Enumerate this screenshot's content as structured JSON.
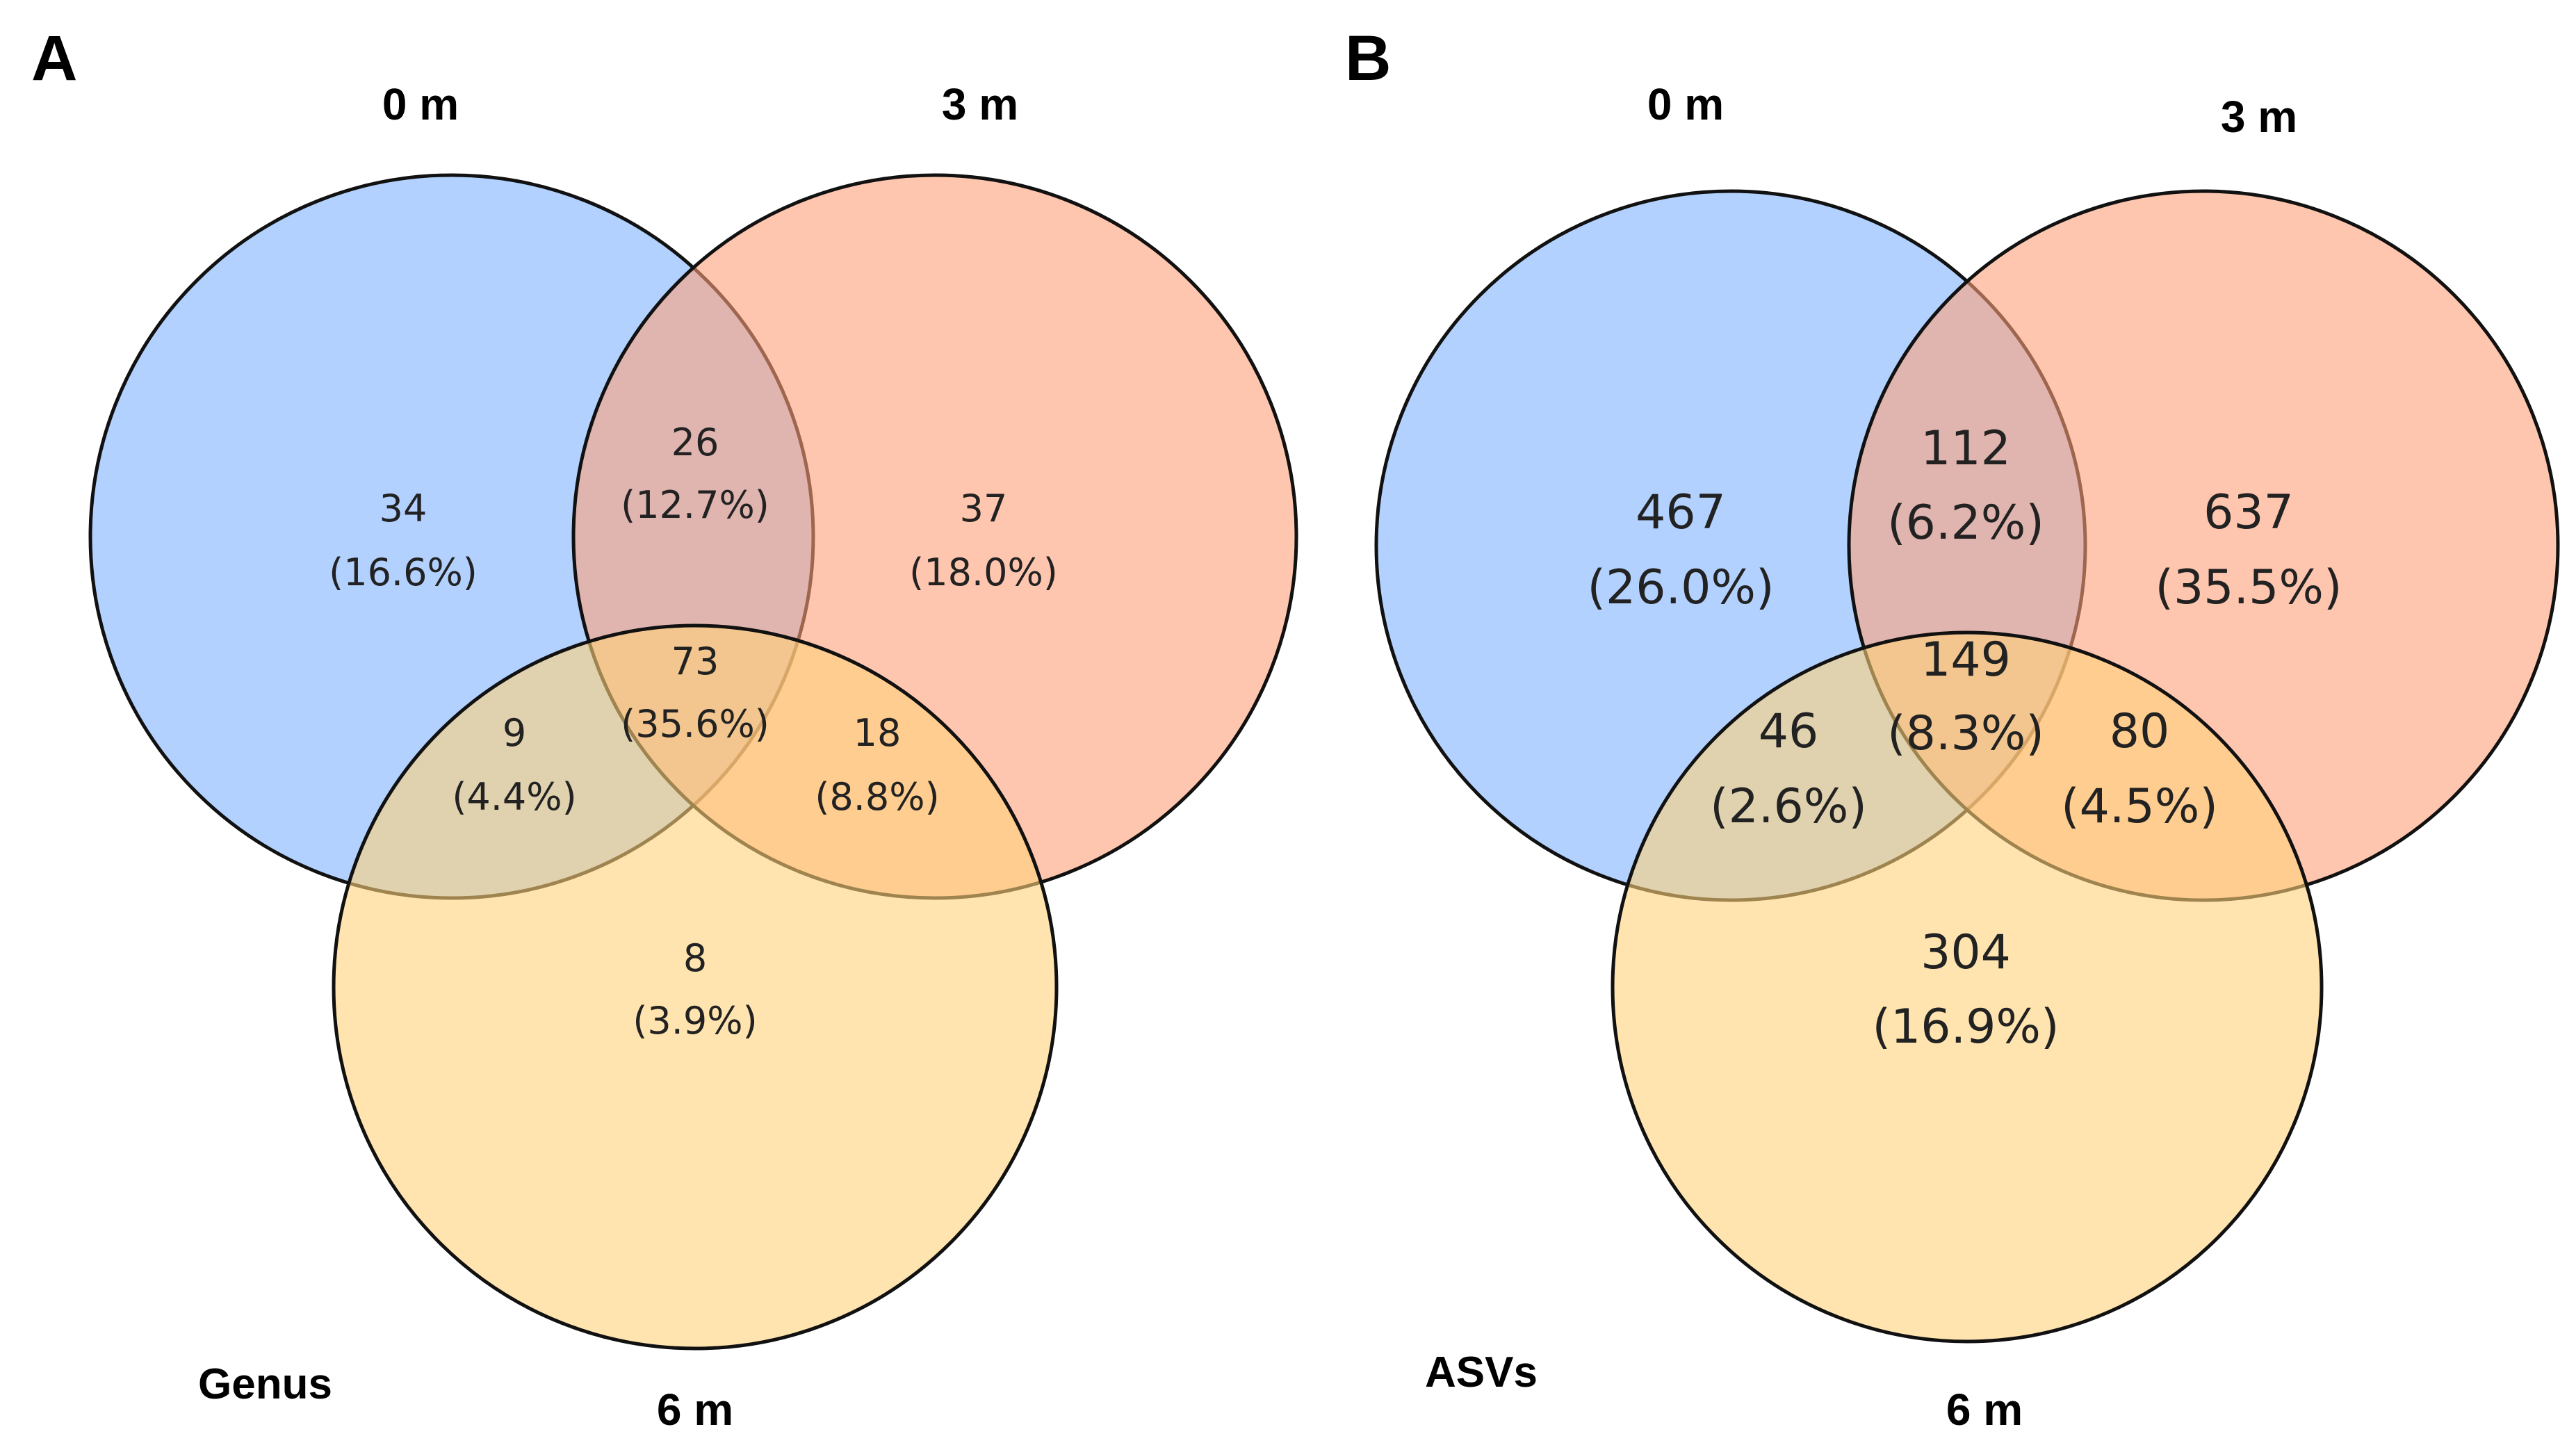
{
  "colors": {
    "set_0m": "#7fb2ff",
    "set_3m": "#ffa07a",
    "set_6m": "#ffd27a",
    "outline": "#111111"
  },
  "chart_data": [
    {
      "type": "venn",
      "panel": "A",
      "level": "Genus",
      "sets": [
        "0 m",
        "3 m",
        "6 m"
      ],
      "regions": [
        {
          "sets": [
            "0 m"
          ],
          "count": "34",
          "percent": "(16.6%)"
        },
        {
          "sets": [
            "3 m"
          ],
          "count": "37",
          "percent": "(18.0%)"
        },
        {
          "sets": [
            "6 m"
          ],
          "count": "8",
          "percent": "(3.9%)"
        },
        {
          "sets": [
            "0 m",
            "3 m"
          ],
          "count": "26",
          "percent": "(12.7%)"
        },
        {
          "sets": [
            "0 m",
            "6 m"
          ],
          "count": "9",
          "percent": "(4.4%)"
        },
        {
          "sets": [
            "3 m",
            "6 m"
          ],
          "count": "18",
          "percent": "(8.8%)"
        },
        {
          "sets": [
            "0 m",
            "3 m",
            "6 m"
          ],
          "count": "73",
          "percent": "(35.6%)"
        }
      ]
    },
    {
      "type": "venn",
      "panel": "B",
      "level": "ASVs",
      "sets": [
        "0 m",
        "3 m",
        "6 m"
      ],
      "regions": [
        {
          "sets": [
            "0 m"
          ],
          "count": "467",
          "percent": "(26.0%)"
        },
        {
          "sets": [
            "3 m"
          ],
          "count": "637",
          "percent": "(35.5%)"
        },
        {
          "sets": [
            "6 m"
          ],
          "count": "304",
          "percent": "(16.9%)"
        },
        {
          "sets": [
            "0 m",
            "3 m"
          ],
          "count": "112",
          "percent": "(6.2%)"
        },
        {
          "sets": [
            "0 m",
            "6 m"
          ],
          "count": "46",
          "percent": "(2.6%)"
        },
        {
          "sets": [
            "3 m",
            "6 m"
          ],
          "count": "80",
          "percent": "(4.5%)"
        },
        {
          "sets": [
            "0 m",
            "3 m",
            "6 m"
          ],
          "count": "149",
          "percent": "(8.3%)"
        }
      ]
    }
  ]
}
